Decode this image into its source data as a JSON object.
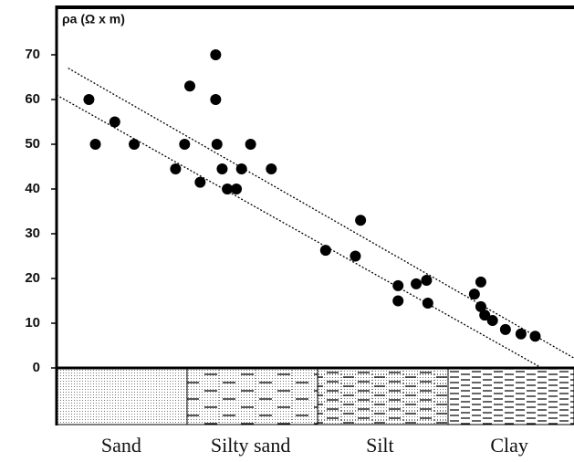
{
  "chart_data": {
    "type": "scatter",
    "y_label": "ρa  (Ω x m)",
    "categories": [
      "Sand",
      "Silty sand",
      "Silt",
      "Clay"
    ],
    "xlim": [
      0,
      4
    ],
    "ylim": [
      0,
      80
    ],
    "yticks": [
      0,
      10,
      20,
      30,
      40,
      50,
      60,
      70
    ],
    "color": "#000000",
    "x": [
      0.25,
      0.3,
      0.45,
      0.6,
      0.92,
      0.99,
      1.03,
      1.11,
      1.23,
      1.23,
      1.24,
      1.28,
      1.32,
      1.39,
      1.43,
      1.5,
      1.66,
      2.08,
      2.31,
      2.35,
      2.64,
      2.64,
      2.78,
      2.86,
      2.87,
      3.23,
      3.28,
      3.28,
      3.31,
      3.37,
      3.47,
      3.59,
      3.7
    ],
    "values": [
      60,
      50,
      55,
      50,
      44.5,
      50,
      63,
      41.5,
      70,
      60,
      50,
      44.5,
      40,
      40,
      44.5,
      50,
      44.5,
      26.3,
      25,
      33,
      18.4,
      15,
      18.8,
      19.6,
      14.5,
      16.5,
      19.2,
      13.7,
      11.8,
      10.6,
      8.6,
      7.6,
      7.1
    ],
    "trend_lines": [
      {
        "x": [
          0.09,
          4.0
        ],
        "values": [
          67,
          2.2
        ]
      },
      {
        "x": [
          0,
          3.75
        ],
        "values": [
          61,
          0
        ]
      }
    ]
  }
}
